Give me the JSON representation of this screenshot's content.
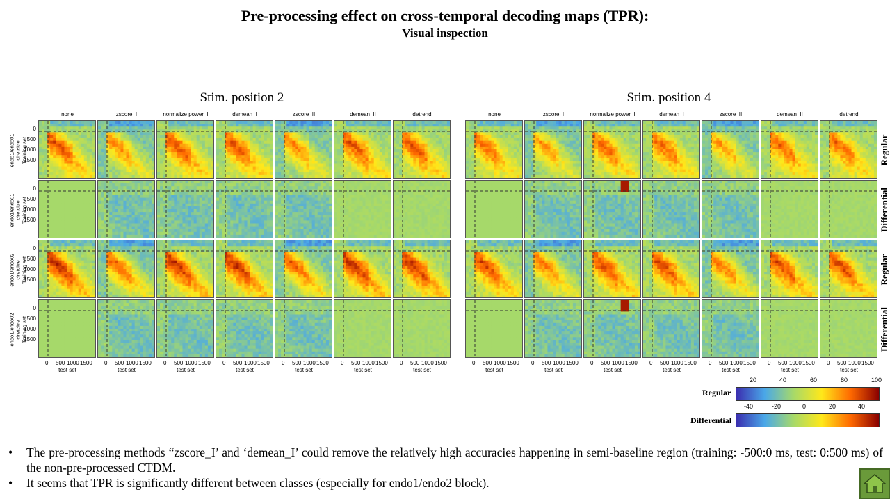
{
  "title": "Pre-processing effect on cross-temporal decoding maps (TPR):",
  "subtitle": "Visual  inspection",
  "panels": [
    {
      "title": "Stim. position 2"
    },
    {
      "title": "Stim. position 4"
    }
  ],
  "columns": [
    "none",
    "zscore_I",
    "normalize power_I",
    "demean_I",
    "zscore_II",
    "demean_II",
    "detrend"
  ],
  "row_labels": [
    {
      "line1": "endo1/endo01",
      "line2": "ciretcitre",
      "line3": "Training set"
    },
    {
      "line1": "endo1/endo01",
      "line2": "ciretcitre",
      "line3": "Training set"
    },
    {
      "line1": "endo1/endo02",
      "line2": "ciretcitre",
      "line3": "Training set"
    },
    {
      "line1": "endo1/endo02",
      "line2": "ciretcitre",
      "line3": "Training set"
    }
  ],
  "row_types": [
    "Regular",
    "Differential",
    "Regular",
    "Differential"
  ],
  "y_ticks": [
    "0",
    "500",
    "1000",
    "1500"
  ],
  "x_ticks": [
    "0",
    "500",
    "1000",
    "1500"
  ],
  "x_label": "test set",
  "colorbars": {
    "regular": {
      "label": "Regular",
      "ticks": [
        "20",
        "40",
        "60",
        "80",
        "100"
      ]
    },
    "differential": {
      "label": "Differential",
      "ticks": [
        "-40",
        "-20",
        "0",
        "20",
        "40"
      ]
    }
  },
  "bullets": [
    "The pre-processing methods “zscore_I’ and ‘demean_I’ could remove the relatively high accuracies happening in semi-baseline region (training: -500:0 ms, test: 0:500 ms) of the non-pre-processed CTDM.",
    "It seems that TPR is significantly different between classes (especially for endo1/endo2 block)."
  ],
  "chart_data": {
    "type": "heatmap",
    "title": "Pre-processing effect on cross-temporal decoding maps (TPR):",
    "subtitle": "Visual  inspection",
    "xlabel": "test set",
    "ylabel": "Training set",
    "x_ticks": [
      0,
      500,
      1000,
      1500
    ],
    "y_ticks": [
      0,
      500,
      1000,
      1500
    ],
    "panels": [
      "Stim. position 2",
      "Stim. position 4"
    ],
    "methods": [
      "none",
      "zscore_I",
      "normalize power_I",
      "demean_I",
      "zscore_II",
      "demean_II",
      "detrend"
    ],
    "rows": [
      "Regular",
      "Differential",
      "Regular",
      "Differential"
    ],
    "colorscale": {
      "regular": {
        "range": [
          20,
          100
        ],
        "colors": [
          "#3b2fb0",
          "#4aa8e8",
          "#a6d96a",
          "#ffe81a",
          "#ff6a00",
          "#8a0000"
        ]
      },
      "differential": {
        "range": [
          -40,
          40
        ],
        "colors": [
          "#3b2fb0",
          "#4aa8e8",
          "#a6d96a",
          "#ffe81a",
          "#ff6a00",
          "#8a0000"
        ]
      }
    }
  }
}
